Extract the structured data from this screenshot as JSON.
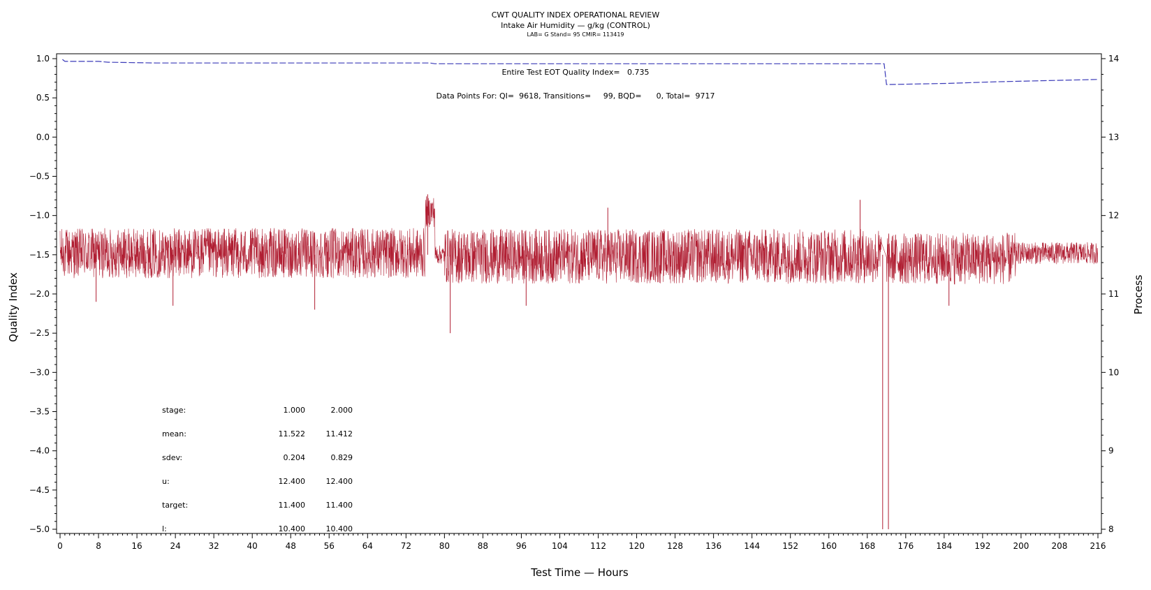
{
  "chart_data": {
    "type": "line",
    "title": "CWT QUALITY INDEX OPERATIONAL REVIEW",
    "subtitle": "Intake Air Humidity — g/kg (CONTROL)",
    "subsubtitle": "LAB= G Stand= 95 CMIR= 113419",
    "xlabel": "Test Time — Hours",
    "ylabel_left": "Quality Index",
    "ylabel_right": "Process",
    "xlim": [
      0,
      216
    ],
    "ylim_left": [
      -5.0,
      1.0
    ],
    "ylim_right": [
      8,
      14
    ],
    "x_ticks": [
      0,
      8,
      16,
      24,
      32,
      40,
      48,
      56,
      64,
      72,
      80,
      88,
      96,
      104,
      112,
      120,
      128,
      136,
      144,
      152,
      160,
      168,
      176,
      184,
      192,
      200,
      208,
      216
    ],
    "y_left_ticks": [
      "1.0",
      "0.5",
      "0.0",
      "−0.5",
      "−1.0",
      "−1.5",
      "−2.0",
      "−2.5",
      "−3.0",
      "−3.5",
      "−4.0",
      "−4.5",
      "−5.0"
    ],
    "y_right_ticks": [
      "14",
      "13",
      "12",
      "11",
      "10",
      "9",
      "8"
    ],
    "series": [
      {
        "role": "quality_index",
        "axis": "left",
        "color": "#3a3ab8",
        "style": "dashed",
        "x": [
          0.5,
          1,
          2,
          8,
          10,
          20,
          40,
          77,
          78,
          170,
          171.5,
          172,
          185,
          195,
          205,
          216
        ],
        "y": [
          0.99,
          0.965,
          0.965,
          0.965,
          0.955,
          0.945,
          0.945,
          0.945,
          0.935,
          0.935,
          0.935,
          0.67,
          0.685,
          0.705,
          0.72,
          0.735
        ]
      },
      {
        "role": "process",
        "axis": "right",
        "color": "#b01e32",
        "style": "solid",
        "summary": "dense oscillating signal centred ~11.5 g/kg, excursions 10.8–12.3, drop to 8.0 near 171–172 h",
        "bands": [
          {
            "x": [
              0,
              76
            ],
            "mean": 11.52,
            "amp": 0.32
          },
          {
            "x": [
              76,
              78
            ],
            "mean": 12.05,
            "amp": 0.2
          },
          {
            "x": [
              78,
              80
            ],
            "mean": 11.5,
            "amp": 0.12
          },
          {
            "x": [
              80,
              171
            ],
            "mean": 11.48,
            "amp": 0.35
          },
          {
            "x": [
              172,
              199
            ],
            "mean": 11.45,
            "amp": 0.33
          },
          {
            "x": [
              199,
              216
            ],
            "mean": 11.52,
            "amp": 0.14
          }
        ],
        "spikes": [
          {
            "x": 7.5,
            "y": 10.9
          },
          {
            "x": 23.5,
            "y": 10.85
          },
          {
            "x": 53,
            "y": 10.8
          },
          {
            "x": 76.5,
            "y": 12.27
          },
          {
            "x": 81.2,
            "y": 10.5
          },
          {
            "x": 97,
            "y": 10.85
          },
          {
            "x": 114,
            "y": 12.1
          },
          {
            "x": 166.5,
            "y": 12.2
          },
          {
            "x": 171.2,
            "y": 8.0
          },
          {
            "x": 172.4,
            "y": 8.0
          },
          {
            "x": 185,
            "y": 10.85
          }
        ]
      }
    ],
    "annotations": [
      "Entire Test EOT Quality Index=   0.735",
      "Data Points For: QI=  9618, Transitions=     99, BQD=      0, Total=  9717"
    ],
    "stats_table": {
      "labels": [
        "stage:",
        "mean:",
        "sdev:",
        "u:",
        "target:",
        "l:"
      ],
      "col1": [
        "1.000",
        "11.522",
        "0.204",
        "12.400",
        "11.400",
        "10.400"
      ],
      "col2": [
        "2.000",
        "11.412",
        "0.829",
        "12.400",
        "11.400",
        "10.400"
      ]
    },
    "grid": false,
    "legend": "none"
  }
}
